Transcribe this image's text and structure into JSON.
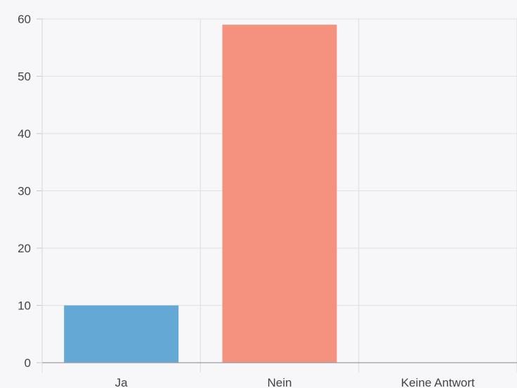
{
  "chart_data": {
    "type": "bar",
    "categories": [
      "Ja",
      "Nein",
      "Keine Antwort"
    ],
    "values": [
      10,
      59,
      0
    ],
    "ylim": [
      0,
      60
    ],
    "yticks": [
      0,
      10,
      20,
      30,
      40,
      50,
      60
    ],
    "grid": true,
    "legend": "none",
    "colors": [
      "#64a9d6",
      "#f5917f",
      "#cccccc"
    ]
  }
}
